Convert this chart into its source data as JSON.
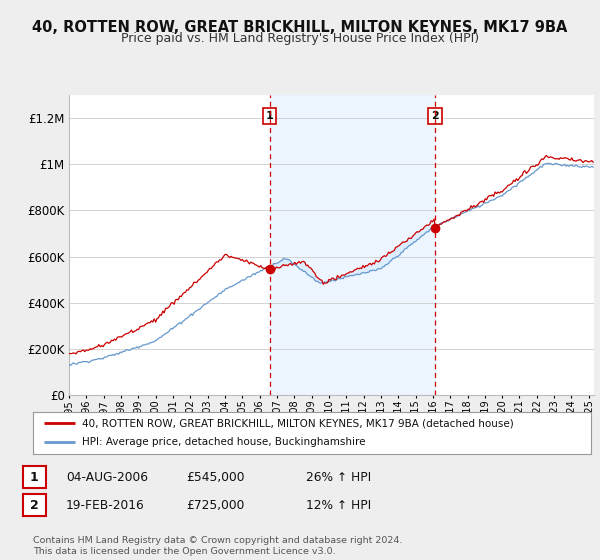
{
  "title_line1": "40, ROTTEN ROW, GREAT BRICKHILL, MILTON KEYNES, MK17 9BA",
  "title_line2": "Price paid vs. HM Land Registry's House Price Index (HPI)",
  "ylim": [
    0,
    1300000
  ],
  "xlim_start": 1995.0,
  "xlim_end": 2025.3,
  "yticks": [
    0,
    200000,
    400000,
    600000,
    800000,
    1000000,
    1200000
  ],
  "ytick_labels": [
    "£0",
    "£200K",
    "£400K",
    "£600K",
    "£800K",
    "£1M",
    "£1.2M"
  ],
  "purchase1_x": 2006.59,
  "purchase1_y": 545000,
  "purchase2_x": 2016.12,
  "purchase2_y": 725000,
  "vline1_x": 2006.59,
  "vline2_x": 2016.12,
  "red_line_color": "#cc0000",
  "blue_line_color": "#6699cc",
  "shade_color": "#ddeeff",
  "vline_color": "#cc0000",
  "legend_label_red": "40, ROTTEN ROW, GREAT BRICKHILL, MILTON KEYNES, MK17 9BA (detached house)",
  "legend_label_blue": "HPI: Average price, detached house, Buckinghamshire",
  "annotation1": [
    "1",
    "04-AUG-2006",
    "£545,000",
    "26% ↑ HPI"
  ],
  "annotation2": [
    "2",
    "19-FEB-2016",
    "£725,000",
    "12% ↑ HPI"
  ],
  "footer": "Contains HM Land Registry data © Crown copyright and database right 2024.\nThis data is licensed under the Open Government Licence v3.0.",
  "background_color": "#eeeeee",
  "plot_bg_color": "#ffffff"
}
